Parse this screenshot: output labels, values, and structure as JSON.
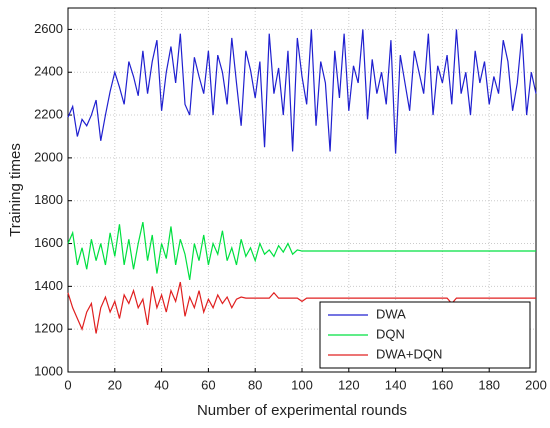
{
  "chart_data": {
    "type": "line",
    "xlabel": "Number of experimental rounds",
    "ylabel": "Training times",
    "x": [
      0,
      2,
      4,
      6,
      8,
      10,
      12,
      14,
      16,
      18,
      20,
      22,
      24,
      26,
      28,
      30,
      32,
      34,
      36,
      38,
      40,
      42,
      44,
      46,
      48,
      50,
      52,
      54,
      56,
      58,
      60,
      62,
      64,
      66,
      68,
      70,
      72,
      74,
      76,
      78,
      80,
      82,
      84,
      86,
      88,
      90,
      92,
      94,
      96,
      98,
      100,
      102,
      104,
      106,
      108,
      110,
      112,
      114,
      116,
      118,
      120,
      122,
      124,
      126,
      128,
      130,
      132,
      134,
      136,
      138,
      140,
      142,
      144,
      146,
      148,
      150,
      152,
      154,
      156,
      158,
      160,
      162,
      164,
      166,
      168,
      170,
      172,
      174,
      176,
      178,
      180,
      182,
      184,
      186,
      188,
      190,
      192,
      194,
      196,
      198,
      200
    ],
    "series": [
      {
        "name": "DWA",
        "color": "#2020d0",
        "values": [
          2190,
          2240,
          2100,
          2180,
          2150,
          2200,
          2270,
          2080,
          2200,
          2310,
          2400,
          2330,
          2250,
          2450,
          2380,
          2290,
          2500,
          2300,
          2450,
          2550,
          2220,
          2400,
          2520,
          2350,
          2580,
          2250,
          2200,
          2470,
          2380,
          2300,
          2500,
          2200,
          2480,
          2400,
          2250,
          2560,
          2350,
          2150,
          2500,
          2410,
          2280,
          2450,
          2050,
          2580,
          2300,
          2420,
          2200,
          2500,
          2030,
          2560,
          2380,
          2250,
          2600,
          2150,
          2450,
          2350,
          2030,
          2500,
          2280,
          2580,
          2220,
          2430,
          2350,
          2600,
          2180,
          2460,
          2300,
          2400,
          2250,
          2550,
          2020,
          2480,
          2350,
          2220,
          2500,
          2400,
          2300,
          2580,
          2200,
          2430,
          2350,
          2480,
          2250,
          2600,
          2300,
          2400,
          2200,
          2500,
          2350,
          2450,
          2250,
          2380,
          2300,
          2550,
          2450,
          2220,
          2350,
          2580,
          2200,
          2400,
          2300
        ]
      },
      {
        "name": "DQN",
        "color": "#00e040",
        "values": [
          1600,
          1650,
          1500,
          1580,
          1480,
          1620,
          1520,
          1600,
          1500,
          1650,
          1540,
          1690,
          1500,
          1620,
          1480,
          1600,
          1700,
          1520,
          1640,
          1460,
          1600,
          1530,
          1680,
          1500,
          1620,
          1550,
          1430,
          1600,
          1520,
          1640,
          1500,
          1600,
          1550,
          1660,
          1520,
          1580,
          1500,
          1620,
          1540,
          1580,
          1520,
          1600,
          1550,
          1570,
          1540,
          1590,
          1560,
          1600,
          1550,
          1570,
          1565,
          1565,
          1565,
          1565,
          1565,
          1565,
          1565,
          1565,
          1565,
          1565,
          1565,
          1565,
          1565,
          1565,
          1565,
          1565,
          1565,
          1565,
          1565,
          1565,
          1565,
          1565,
          1565,
          1565,
          1565,
          1565,
          1565,
          1565,
          1565,
          1565,
          1565,
          1565,
          1565,
          1565,
          1565,
          1565,
          1565,
          1565,
          1565,
          1565,
          1565,
          1565,
          1565,
          1565,
          1565,
          1565,
          1565,
          1565,
          1565,
          1565,
          1565
        ]
      },
      {
        "name": "DWA+DQN",
        "color": "#e02020",
        "values": [
          1370,
          1300,
          1250,
          1200,
          1280,
          1320,
          1180,
          1300,
          1350,
          1280,
          1330,
          1250,
          1360,
          1320,
          1380,
          1300,
          1340,
          1220,
          1400,
          1300,
          1360,
          1280,
          1380,
          1330,
          1420,
          1260,
          1350,
          1300,
          1380,
          1280,
          1340,
          1300,
          1360,
          1320,
          1350,
          1300,
          1340,
          1350,
          1345,
          1345,
          1345,
          1345,
          1345,
          1345,
          1370,
          1345,
          1345,
          1345,
          1345,
          1345,
          1330,
          1345,
          1345,
          1345,
          1345,
          1345,
          1345,
          1345,
          1345,
          1345,
          1345,
          1345,
          1345,
          1345,
          1345,
          1345,
          1345,
          1345,
          1345,
          1345,
          1345,
          1345,
          1345,
          1345,
          1345,
          1345,
          1345,
          1345,
          1345,
          1345,
          1345,
          1345,
          1320,
          1345,
          1345,
          1345,
          1345,
          1345,
          1345,
          1345,
          1345,
          1345,
          1345,
          1345,
          1345,
          1345,
          1345,
          1345,
          1345,
          1345,
          1345
        ]
      }
    ],
    "xlim": [
      0,
      200
    ],
    "xticks": [
      0,
      20,
      40,
      60,
      80,
      100,
      120,
      140,
      160,
      180,
      200
    ],
    "ylim": [
      1000,
      2700
    ],
    "yticks": [
      1000,
      1200,
      1400,
      1600,
      1800,
      2000,
      2200,
      2400,
      2600
    ],
    "grid": true,
    "legend": "lower right"
  }
}
